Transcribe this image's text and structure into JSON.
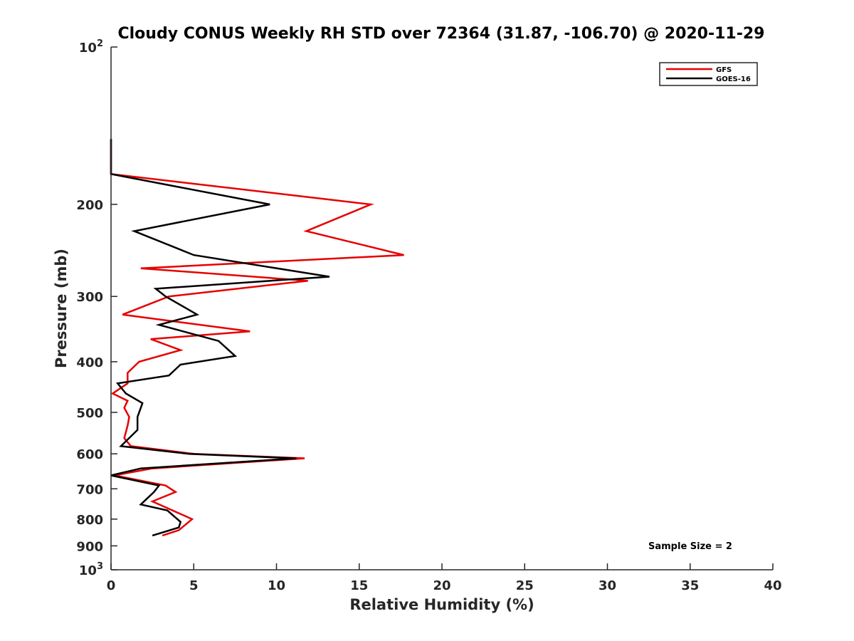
{
  "chart_data": {
    "type": "line",
    "title": "Cloudy CONUS Weekly RH STD over 72364 (31.87, -106.70) @ 2020-11-29",
    "xlabel": "Relative Humidity (%)",
    "ylabel": "Pressure (mb)",
    "xlim": [
      0,
      40
    ],
    "ylim": [
      100,
      1000
    ],
    "y_scale": "log",
    "y_reversed": true,
    "x_ticks": [
      0,
      5,
      10,
      15,
      20,
      25,
      30,
      35,
      40
    ],
    "y_ticks": [
      {
        "value": 100,
        "base": "10",
        "exp": "2"
      },
      {
        "value": 200,
        "label": "200"
      },
      {
        "value": 300,
        "label": "300"
      },
      {
        "value": 400,
        "label": "400"
      },
      {
        "value": 500,
        "label": "500"
      },
      {
        "value": 600,
        "label": "600"
      },
      {
        "value": 700,
        "label": "700"
      },
      {
        "value": 800,
        "label": "800"
      },
      {
        "value": 900,
        "label": "900"
      },
      {
        "value": 1000,
        "base": "10",
        "exp": "3"
      }
    ],
    "grid": false,
    "legend_position": "top-right",
    "note": "Sample Size = 2",
    "series": [
      {
        "name": "GFS",
        "color": "#e60000",
        "points": [
          [
            0,
            150
          ],
          [
            0,
            175
          ],
          [
            15.7,
            200
          ],
          [
            11.8,
            225
          ],
          [
            17.7,
            250
          ],
          [
            1.8,
            265
          ],
          [
            11.9,
            280
          ],
          [
            3.5,
            300
          ],
          [
            0.7,
            325
          ],
          [
            8.4,
            350
          ],
          [
            2.4,
            362
          ],
          [
            4.2,
            380
          ],
          [
            1.7,
            400
          ],
          [
            1.0,
            420
          ],
          [
            1.0,
            440
          ],
          [
            0.1,
            460
          ],
          [
            1.0,
            475
          ],
          [
            0.8,
            490
          ],
          [
            1.1,
            510
          ],
          [
            1.0,
            530
          ],
          [
            0.8,
            560
          ],
          [
            1.2,
            580
          ],
          [
            5.0,
            600
          ],
          [
            11.7,
            612
          ],
          [
            2.5,
            640
          ],
          [
            0.2,
            660
          ],
          [
            3.3,
            690
          ],
          [
            3.9,
            710
          ],
          [
            2.5,
            740
          ],
          [
            4.9,
            800
          ],
          [
            4.1,
            840
          ],
          [
            3.1,
            860
          ]
        ]
      },
      {
        "name": "GOES-16",
        "color": "#000000",
        "points": [
          [
            0,
            150
          ],
          [
            0,
            175
          ],
          [
            9.6,
            200
          ],
          [
            1.4,
            225
          ],
          [
            5.0,
            250
          ],
          [
            13.2,
            275
          ],
          [
            2.7,
            290
          ],
          [
            3.3,
            300
          ],
          [
            5.2,
            325
          ],
          [
            2.9,
            340
          ],
          [
            6.5,
            365
          ],
          [
            7.5,
            390
          ],
          [
            4.2,
            405
          ],
          [
            3.5,
            425
          ],
          [
            0.4,
            440
          ],
          [
            0.9,
            460
          ],
          [
            1.9,
            480
          ],
          [
            1.6,
            510
          ],
          [
            1.6,
            540
          ],
          [
            0.6,
            580
          ],
          [
            4.7,
            600
          ],
          [
            11.2,
            612
          ],
          [
            1.8,
            640
          ],
          [
            0,
            660
          ],
          [
            2.9,
            690
          ],
          [
            2.6,
            710
          ],
          [
            1.8,
            750
          ],
          [
            3.4,
            770
          ],
          [
            4.2,
            810
          ],
          [
            4.1,
            830
          ],
          [
            2.5,
            860
          ]
        ]
      }
    ]
  }
}
